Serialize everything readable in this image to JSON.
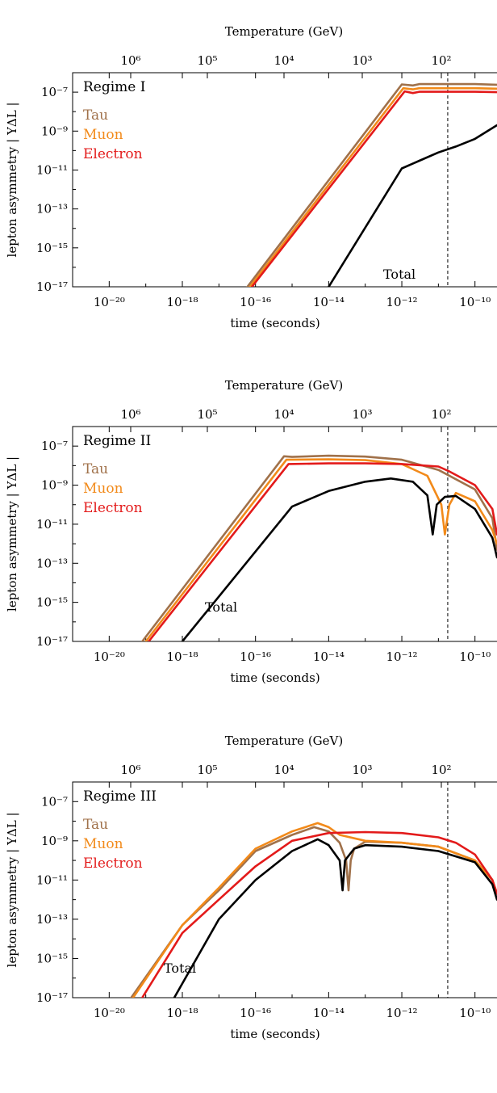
{
  "colors": {
    "tau": "#a0714a",
    "muon": "#f28a1a",
    "electron": "#e31a1a",
    "total": "#000000"
  },
  "chart_data": [
    {
      "type": "line",
      "title": "Regime I",
      "xlabel": "time (seconds)",
      "ylabel": "lepton asymmetry  | YΔL |",
      "top_axis_label": "Temperature (GeV)",
      "xscale": "log",
      "yscale": "log",
      "xlim": [
        1e-21,
        4e-10
      ],
      "ylim": [
        1e-17,
        1e-06
      ],
      "x_ticks": [
        "10⁻²⁰",
        "10⁻¹⁸",
        "10⁻¹⁶",
        "10⁻¹⁴",
        "10⁻¹²",
        "10⁻¹⁰"
      ],
      "y_ticks": [
        "10⁻¹⁷",
        "10⁻¹⁵",
        "10⁻¹³",
        "10⁻¹¹",
        "10⁻⁹",
        "10⁻⁷"
      ],
      "top_ticks": [
        "10⁶",
        "10⁵",
        "10⁴",
        "10³",
        "10²"
      ],
      "vline_t": 1.8e-11,
      "legend": [
        "Tau",
        "Muon",
        "Electron"
      ],
      "annotations": [
        "Total"
      ],
      "series": [
        {
          "name": "Tau",
          "x": [
            6e-17,
            1e-12,
            2e-12,
            3e-12,
            1e-11,
            1e-10,
            4e-10
          ],
          "y": [
            1e-17,
            2.5e-07,
            2.2e-07,
            2.6e-07,
            2.6e-07,
            2.6e-07,
            2.4e-07
          ]
        },
        {
          "name": "Muon",
          "x": [
            7e-17,
            1.1e-12,
            2e-12,
            3e-12,
            1e-11,
            1e-10,
            4e-10
          ],
          "y": [
            1e-17,
            1.6e-07,
            1.4e-07,
            1.6e-07,
            1.6e-07,
            1.6e-07,
            1.5e-07
          ]
        },
        {
          "name": "Electron",
          "x": [
            8e-17,
            1.2e-12,
            2e-12,
            3e-12,
            1e-11,
            1e-10,
            4e-10
          ],
          "y": [
            1e-17,
            1.1e-07,
            9e-08,
            1.05e-07,
            1.05e-07,
            1.05e-07,
            1e-07
          ]
        },
        {
          "name": "Total",
          "x": [
            1e-14,
            1e-12,
            3e-12,
            1e-11,
            3e-11,
            1e-10,
            2e-10,
            4e-10
          ],
          "y": [
            1e-17,
            1.2e-11,
            3e-11,
            8e-11,
            1.6e-10,
            4e-10,
            9e-10,
            2e-09
          ]
        }
      ]
    },
    {
      "type": "line",
      "title": "Regime II",
      "xlabel": "time (seconds)",
      "ylabel": "lepton asymmetry  | YΔL |",
      "top_axis_label": "Temperature (GeV)",
      "xscale": "log",
      "yscale": "log",
      "xlim": [
        1e-21,
        4e-10
      ],
      "ylim": [
        1e-17,
        1e-06
      ],
      "x_ticks": [
        "10⁻²⁰",
        "10⁻¹⁸",
        "10⁻¹⁶",
        "10⁻¹⁴",
        "10⁻¹²",
        "10⁻¹⁰"
      ],
      "y_ticks": [
        "10⁻¹⁷",
        "10⁻¹⁵",
        "10⁻¹³",
        "10⁻¹¹",
        "10⁻⁹",
        "10⁻⁷"
      ],
      "top_ticks": [
        "10⁶",
        "10⁵",
        "10⁴",
        "10³",
        "10²"
      ],
      "vline_t": 1.8e-11,
      "legend": [
        "Tau",
        "Muon",
        "Electron"
      ],
      "annotations": [
        "Total"
      ],
      "series": [
        {
          "name": "Tau",
          "x": [
            8e-20,
            6e-16,
            1e-15,
            1e-14,
            1e-13,
            1e-12,
            1e-11,
            1e-10,
            3e-10,
            4e-10
          ],
          "y": [
            1e-17,
            3e-08,
            2.8e-08,
            3.2e-08,
            2.9e-08,
            2e-08,
            6e-09,
            6e-10,
            2e-11,
            5e-13
          ]
        },
        {
          "name": "Muon",
          "x": [
            1e-19,
            7e-16,
            1e-14,
            1e-13,
            1e-12,
            5e-12,
            1.2e-11,
            1.5e-11,
            2e-11,
            3e-11,
            1e-10,
            3e-10,
            4e-10
          ],
          "y": [
            1e-17,
            2e-08,
            2.1e-08,
            1.9e-08,
            1.2e-08,
            3e-09,
            1e-10,
            3e-12,
            1e-10,
            4e-10,
            1.5e-10,
            5e-12,
            1e-12
          ]
        },
        {
          "name": "Electron",
          "x": [
            1.2e-19,
            8e-16,
            1e-14,
            1e-13,
            1e-12,
            1e-11,
            2e-11,
            1e-10,
            3e-10,
            4e-10
          ],
          "y": [
            1e-17,
            1.2e-08,
            1.3e-08,
            1.3e-08,
            1.2e-08,
            9e-09,
            5e-09,
            1e-09,
            6e-11,
            3e-12
          ]
        },
        {
          "name": "Total",
          "x": [
            1e-18,
            1e-15,
            1e-14,
            1e-13,
            5e-13,
            2e-12,
            5e-12,
            7e-12,
            9e-12,
            1.5e-11,
            3e-11,
            1e-10,
            3e-10,
            4e-10
          ],
          "y": [
            1e-17,
            8e-11,
            5e-10,
            1.5e-09,
            2.2e-09,
            1.5e-09,
            3e-10,
            3e-12,
            1e-10,
            2.5e-10,
            2.8e-10,
            6e-11,
            2e-12,
            2e-13
          ]
        }
      ]
    },
    {
      "type": "line",
      "title": "Regime III",
      "xlabel": "time (seconds)",
      "ylabel": "lepton asymmetry  | YΔL |",
      "top_axis_label": "Temperature (GeV)",
      "xscale": "log",
      "yscale": "log",
      "xlim": [
        1e-21,
        4e-10
      ],
      "ylim": [
        1e-17,
        1e-06
      ],
      "x_ticks": [
        "10⁻²⁰",
        "10⁻¹⁸",
        "10⁻¹⁶",
        "10⁻¹⁴",
        "10⁻¹²",
        "10⁻¹⁰"
      ],
      "y_ticks": [
        "10⁻¹⁷",
        "10⁻¹⁵",
        "10⁻¹³",
        "10⁻¹¹",
        "10⁻⁹",
        "10⁻⁷"
      ],
      "top_ticks": [
        "10⁶",
        "10⁵",
        "10⁴",
        "10³",
        "10²"
      ],
      "vline_t": 1.8e-11,
      "legend": [
        "Tau",
        "Muon",
        "Electron"
      ],
      "annotations": [
        "Total"
      ],
      "series": [
        {
          "name": "Tau",
          "x": [
            4e-20,
            1e-18,
            1e-17,
            1e-16,
            1e-15,
            4e-15,
            1e-14,
            2e-14,
            3e-14,
            3.5e-14,
            4e-14,
            5e-14,
            1e-13,
            1e-12,
            1e-11,
            1e-10,
            3e-10,
            4e-10
          ],
          "y": [
            1e-17,
            5e-14,
            3e-12,
            3e-10,
            2e-09,
            5e-09,
            3e-09,
            8e-10,
            1e-10,
            3e-12,
            1e-10,
            4e-10,
            9e-10,
            8e-10,
            5e-10,
            1e-10,
            1e-11,
            2e-12
          ]
        },
        {
          "name": "Muon",
          "x": [
            4.5e-20,
            1e-18,
            1e-17,
            1e-16,
            1e-15,
            5e-15,
            1e-14,
            2e-14,
            1e-13,
            1e-12,
            1e-11,
            1e-10,
            3e-10,
            4e-10
          ],
          "y": [
            1e-17,
            5e-14,
            4e-12,
            4e-10,
            3e-09,
            8e-09,
            5e-09,
            2e-09,
            1e-09,
            8e-10,
            5e-10,
            1e-10,
            1e-11,
            2e-12
          ]
        },
        {
          "name": "Electron",
          "x": [
            8e-20,
            1e-18,
            1e-17,
            1e-16,
            1e-15,
            1e-14,
            1e-13,
            1e-12,
            1e-11,
            3e-11,
            1e-10,
            3e-10,
            4e-10
          ],
          "y": [
            1e-17,
            2e-14,
            1e-12,
            5e-11,
            1e-09,
            2.5e-09,
            2.8e-09,
            2.5e-09,
            1.5e-09,
            8e-10,
            2e-10,
            1e-11,
            2e-12
          ]
        },
        {
          "name": "Total",
          "x": [
            6e-19,
            1e-17,
            1e-16,
            1e-15,
            5e-15,
            1e-14,
            2e-14,
            2.4e-14,
            2.8e-14,
            5e-14,
            1e-13,
            1e-12,
            1e-11,
            1e-10,
            3e-10,
            4e-10
          ],
          "y": [
            1e-17,
            1e-13,
            1e-11,
            3e-10,
            1.2e-09,
            6e-10,
            1e-10,
            3e-12,
            1e-10,
            4e-10,
            6e-10,
            5e-10,
            3e-10,
            8e-11,
            6e-12,
            1e-12
          ]
        }
      ]
    }
  ]
}
